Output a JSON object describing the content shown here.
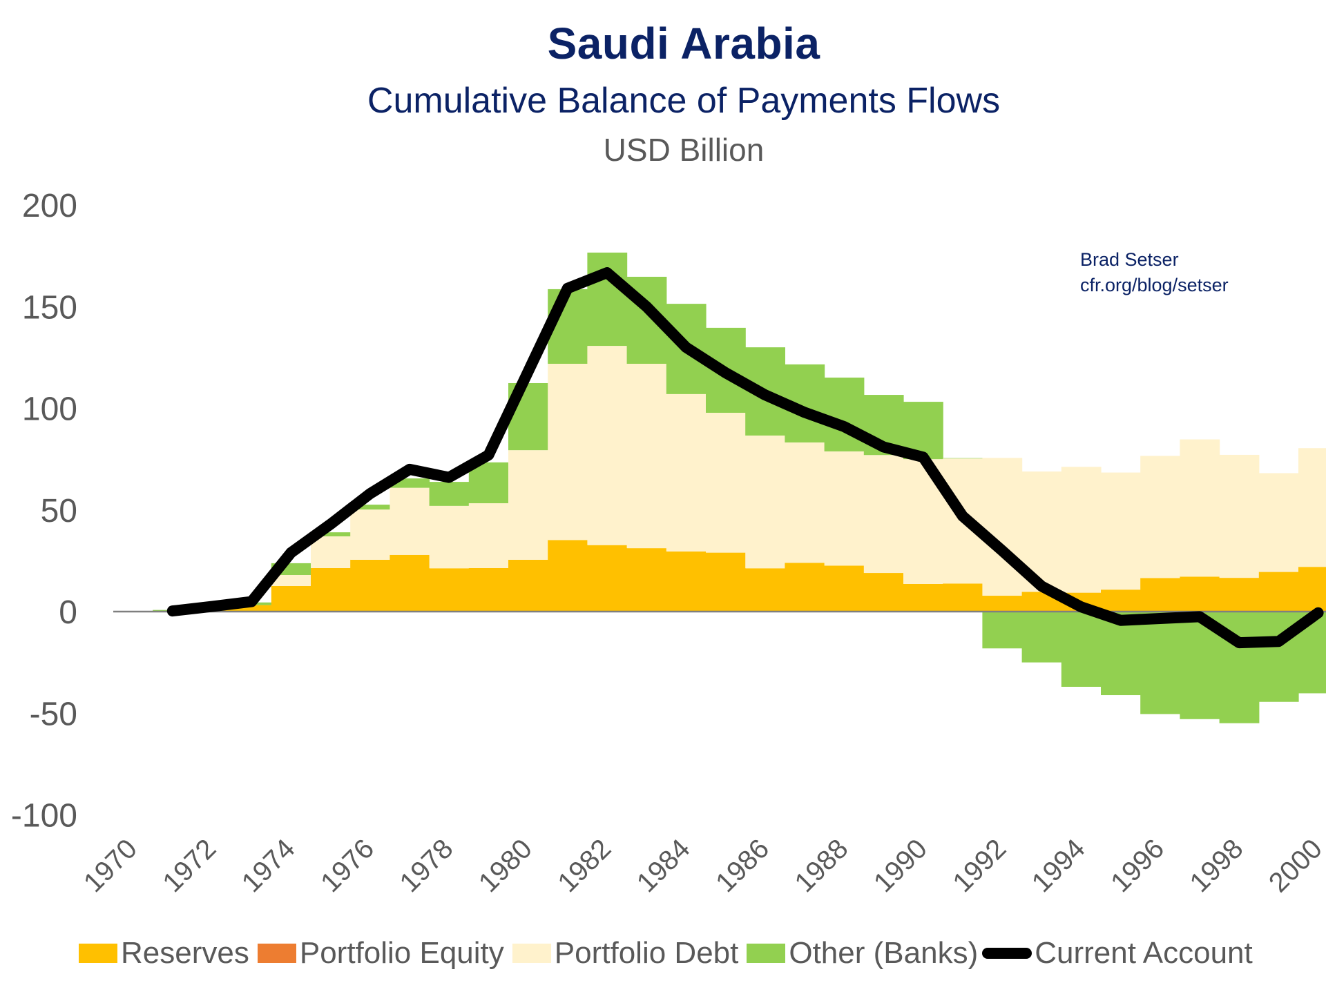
{
  "header": {
    "title": "Saudi Arabia",
    "subtitle": "Cumulative Balance of Payments Flows",
    "units": "USD Billion"
  },
  "credit": {
    "author": "Brad Setser",
    "url": "cfr.org/blog/setser"
  },
  "chart_data": {
    "type": "bar",
    "stacked": true,
    "title": "Saudi Arabia",
    "subtitle": "Cumulative Balance of Payments Flows",
    "ylabel": "USD Billion",
    "ylim": [
      -100,
      200
    ],
    "yticks": [
      200,
      150,
      100,
      50,
      0,
      -50,
      -100
    ],
    "xtick_labels": [
      "1970",
      "1972",
      "1974",
      "1976",
      "1978",
      "1980",
      "1982",
      "1984",
      "1986",
      "1988",
      "1990",
      "1992",
      "1994",
      "1996",
      "1998",
      "2000"
    ],
    "categories": [
      1970,
      1971,
      1972,
      1973,
      1974,
      1975,
      1976,
      1977,
      1978,
      1979,
      1980,
      1981,
      1982,
      1983,
      1984,
      1985,
      1986,
      1987,
      1988,
      1989,
      1990,
      1991,
      1992,
      1993,
      1994,
      1995,
      1996,
      1997,
      1998,
      1999,
      2000
    ],
    "series": [
      {
        "name": "Reserves",
        "color": "#FFC000",
        "values": [
          0,
          0.3,
          1.5,
          3.2,
          12.6,
          21.4,
          25.5,
          27.9,
          21.3,
          21.4,
          25.5,
          35.2,
          32.7,
          31.2,
          29.6,
          29.0,
          21.3,
          24.0,
          22.6,
          19.0,
          13.6,
          13.8,
          7.8,
          9.7,
          9.3,
          10.8,
          16.5,
          17.2,
          16.6,
          19.5,
          22.0
        ]
      },
      {
        "name": "Portfolio Equity",
        "color": "#ED7D31",
        "values": [
          0,
          0,
          0,
          0,
          0,
          0,
          0,
          0,
          0,
          0,
          0,
          0,
          0,
          0,
          0,
          0,
          0,
          0,
          0,
          0,
          0,
          0,
          0,
          0,
          0,
          0,
          0,
          0,
          0,
          0,
          0
        ]
      },
      {
        "name": "Portfolio Debt",
        "color": "#FFF2CC",
        "values": [
          0,
          0,
          0,
          0,
          5.4,
          15.6,
          24.7,
          33.0,
          30.7,
          31.9,
          53.9,
          86.7,
          98.0,
          90.7,
          77.4,
          68.8,
          65.3,
          59.2,
          56.2,
          58.0,
          61.4,
          61.5,
          67.8,
          59.2,
          61.9,
          57.6,
          60.1,
          67.5,
          60.5,
          48.6,
          58.4
        ]
      },
      {
        "name": "Other (Banks)",
        "color": "#92D050",
        "values": [
          0,
          0.5,
          0.3,
          1.3,
          5.8,
          2.0,
          2.4,
          4.6,
          11.8,
          20.1,
          33.0,
          36.7,
          45.9,
          42.8,
          44.4,
          41.8,
          43.4,
          38.4,
          36.3,
          29.6,
          28.2,
          0.2,
          -18.1,
          -25.0,
          -37.0,
          -41.1,
          -50.4,
          -52.9,
          -54.9,
          -44.4,
          -40.2
        ]
      }
    ],
    "line_series": {
      "name": "Current Account",
      "color": "#000000",
      "values": [
        null,
        0.3,
        2.5,
        4.9,
        29,
        43,
        58,
        70,
        66,
        77,
        118,
        159,
        166.7,
        150,
        130,
        117.5,
        106.6,
        98,
        91,
        81,
        76,
        47,
        30,
        12.5,
        2.3,
        -4.3,
        -3.4,
        -2.5,
        -15.3,
        -14.7,
        -0.6
      ]
    },
    "legend": {
      "position": "bottom",
      "entries": [
        "Reserves",
        "Portfolio Equity",
        "Portfolio Debt",
        "Other (Banks)",
        "Current Account"
      ]
    },
    "grid": false,
    "annotation": [
      "Brad Setser",
      "cfr.org/blog/setser"
    ]
  }
}
